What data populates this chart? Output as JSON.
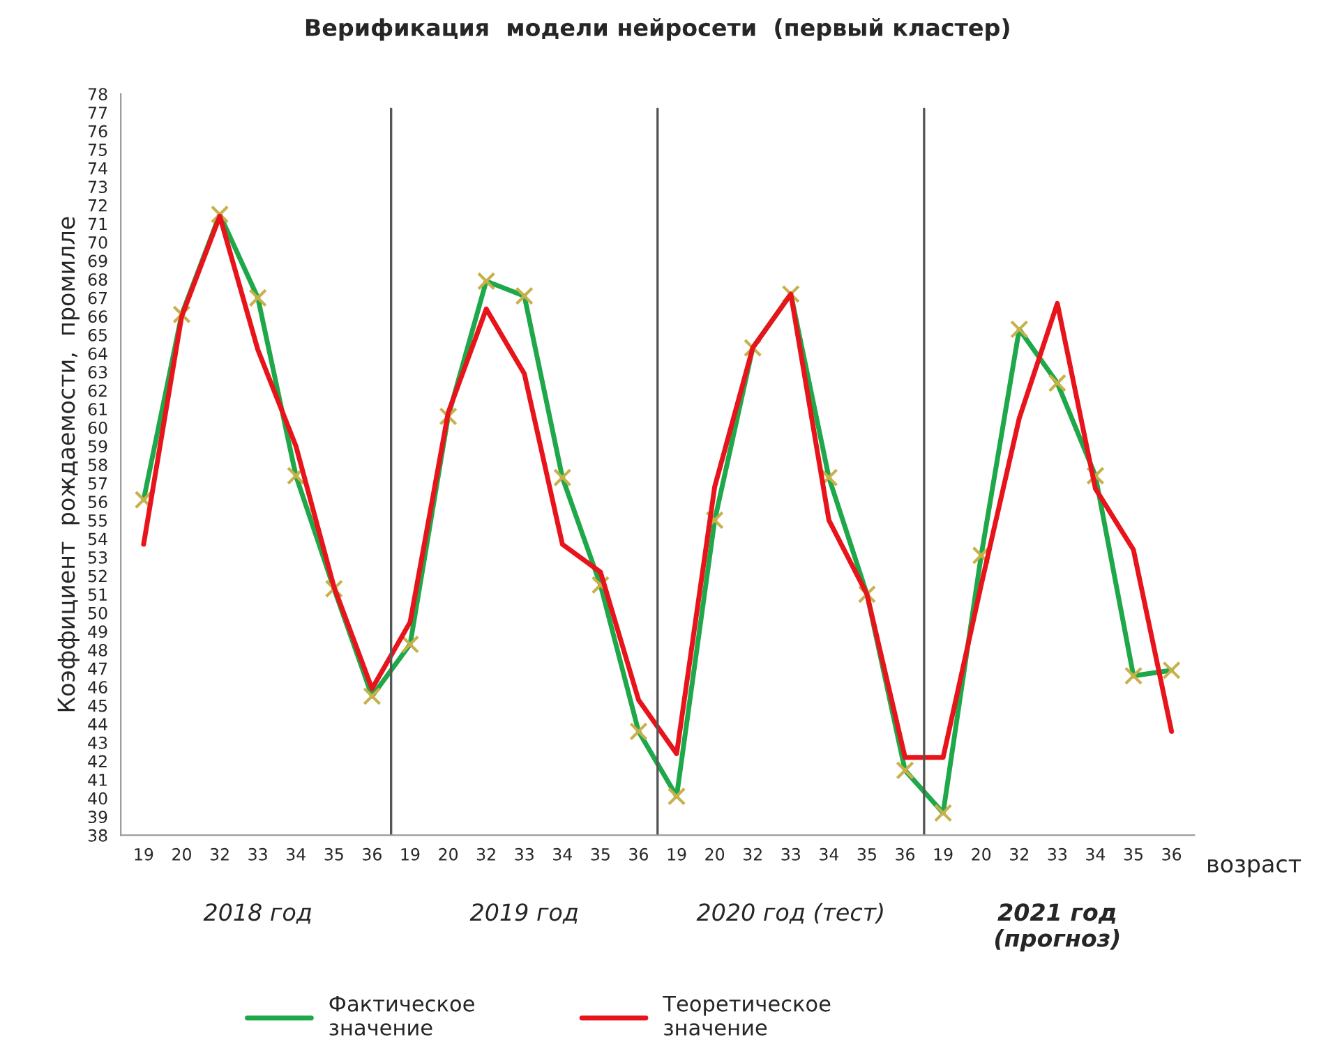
{
  "chart_data": {
    "type": "line",
    "title": "Верификация  модели нейросети  (первый кластер)",
    "xlabel": "возраст",
    "ylabel": "Коэффициент  рождаемости,  промилле",
    "categories": [
      "19",
      "20",
      "32",
      "33",
      "34",
      "35",
      "36",
      "19",
      "20",
      "32",
      "33",
      "34",
      "35",
      "36",
      "19",
      "20",
      "32",
      "33",
      "34",
      "35",
      "36",
      "19",
      "20",
      "32",
      "33",
      "34",
      "35",
      "36"
    ],
    "series": [
      {
        "name": "Фактическое значение",
        "color": "#1fa84a",
        "marker": "cross",
        "values": [
          56.1,
          66.1,
          71.5,
          67.0,
          57.4,
          51.3,
          45.5,
          48.3,
          60.6,
          67.9,
          67.1,
          57.3,
          51.5,
          43.6,
          40.1,
          55.0,
          64.3,
          67.2,
          57.3,
          51.0,
          41.5,
          39.2,
          53.1,
          65.3,
          62.4,
          57.4,
          46.6,
          46.9
        ]
      },
      {
        "name": "Теоретическое значение",
        "color": "#e8141c",
        "marker": "none",
        "values": [
          53.7,
          66.0,
          71.4,
          64.2,
          59.0,
          51.4,
          45.9,
          49.5,
          60.8,
          66.4,
          62.9,
          53.7,
          52.2,
          45.3,
          42.4,
          56.8,
          64.3,
          67.2,
          55.0,
          51.0,
          42.2,
          42.2,
          51.5,
          60.5,
          66.7,
          56.7,
          53.4,
          43.6
        ]
      }
    ],
    "ylim": [
      38,
      78
    ],
    "yticks": [
      38,
      39,
      40,
      41,
      42,
      43,
      44,
      45,
      46,
      47,
      48,
      49,
      50,
      51,
      52,
      53,
      54,
      55,
      56,
      57,
      58,
      59,
      60,
      61,
      62,
      63,
      64,
      65,
      66,
      67,
      68,
      69,
      70,
      71,
      72,
      73,
      74,
      75,
      76,
      77,
      78
    ],
    "annotations": [
      "2018 год",
      "2019 год",
      "2020 год (тест)",
      "2021 год\n(прогноз)"
    ],
    "grid": false,
    "legend": "bottom",
    "line_style": "solid"
  }
}
